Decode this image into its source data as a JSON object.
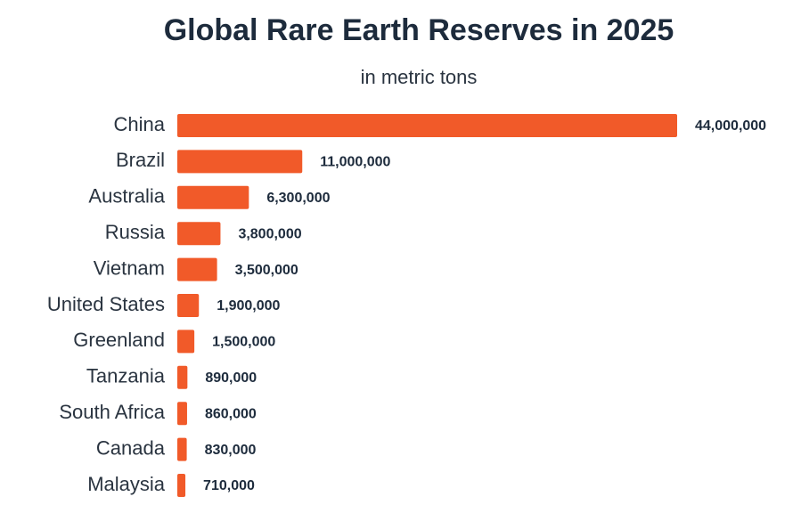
{
  "chart_data": {
    "type": "bar",
    "orientation": "horizontal",
    "title": "Global Rare Earth Reserves in 2025",
    "subtitle": "in metric tons",
    "categories": [
      "China",
      "Brazil",
      "Australia",
      "Russia",
      "Vietnam",
      "United States",
      "Greenland",
      "Tanzania",
      "South Africa",
      "Canada",
      "Malaysia"
    ],
    "values": [
      44000000,
      11000000,
      6300000,
      3800000,
      3500000,
      1900000,
      1500000,
      890000,
      860000,
      830000,
      710000
    ],
    "value_labels": [
      "44,000,000",
      "11,000,000",
      "6,300,000",
      "3,800,000",
      "3,500,000",
      "1,900,000",
      "1,500,000",
      "890,000",
      "860,000",
      "830,000",
      "710,000"
    ],
    "color": "#f15a29"
  }
}
